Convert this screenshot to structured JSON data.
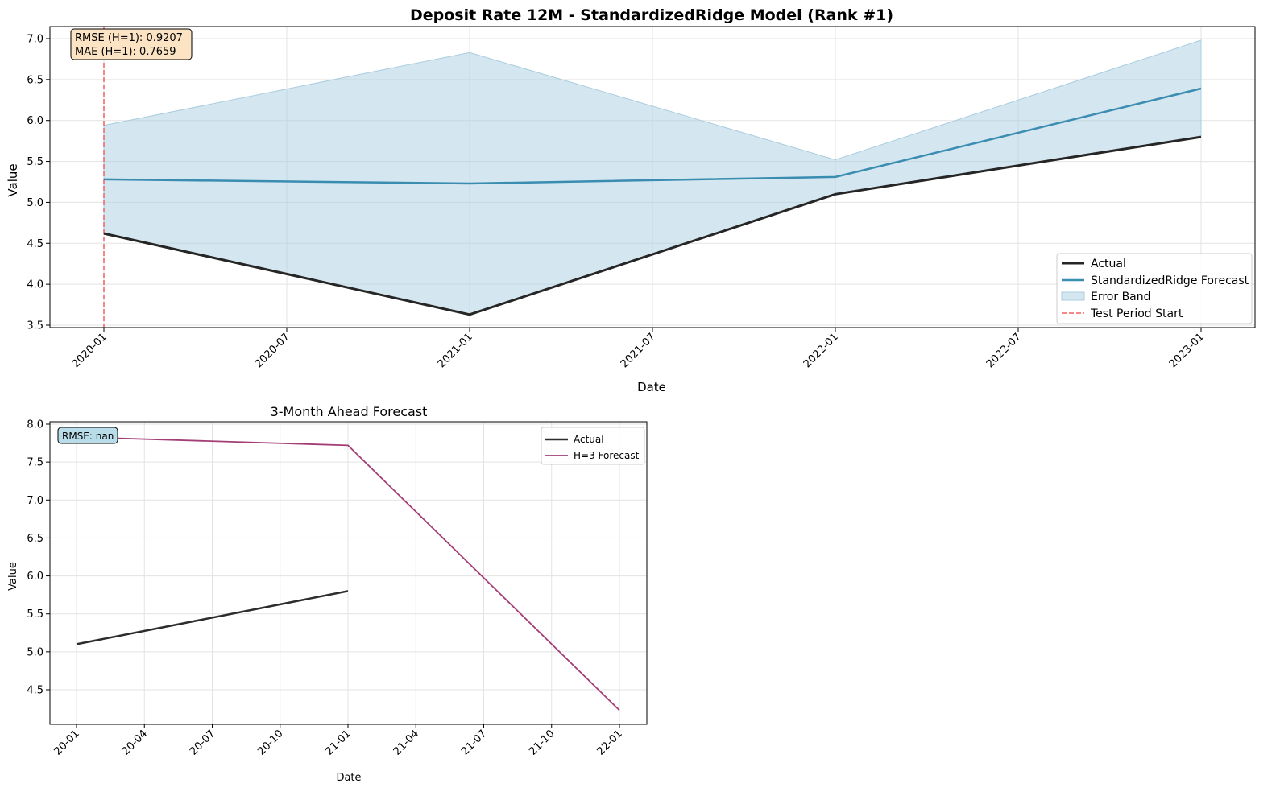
{
  "chart_data": [
    {
      "type": "line",
      "title": "Deposit Rate 12M - StandardizedRidge Model (Rank #1)",
      "xlabel": "Date",
      "ylabel": "Value",
      "x": [
        "2020-01",
        "2021-01",
        "2022-01",
        "2023-01"
      ],
      "xticks": [
        "2020-01",
        "2020-07",
        "2021-01",
        "2021-07",
        "2022-01",
        "2022-07",
        "2023-01"
      ],
      "yticks": [
        "3.5",
        "4.0",
        "4.5",
        "5.0",
        "5.5",
        "6.0",
        "6.5",
        "7.0"
      ],
      "ylim": [
        3.45,
        7.15
      ],
      "grid": true,
      "legend_position": "lower-right",
      "series": [
        {
          "name": "Actual",
          "values": [
            4.62,
            3.63,
            5.1,
            5.8
          ],
          "color": "#262626"
        },
        {
          "name": "StandardizedRidge Forecast",
          "values": [
            5.28,
            5.23,
            5.31,
            6.39
          ],
          "color": "#3a8cb0"
        }
      ],
      "error_band": {
        "name": "Error Band",
        "upper": [
          5.94,
          6.83,
          5.52,
          6.98
        ],
        "lower": [
          4.62,
          3.63,
          5.1,
          5.8
        ],
        "color": "#aacde0"
      },
      "vline": {
        "name": "Test Period Start",
        "x": "2020-01",
        "color": "#f06060"
      },
      "annotations": [
        "RMSE (H=1): 0.9207",
        "MAE (H=1): 0.7659"
      ]
    },
    {
      "type": "line",
      "title": "3-Month Ahead Forecast",
      "xlabel": "Date",
      "ylabel": "Value",
      "xticks": [
        "20-01",
        "20-04",
        "20-07",
        "20-10",
        "21-01",
        "21-04",
        "21-07",
        "21-10",
        "22-01"
      ],
      "yticks": [
        "4.5",
        "5.0",
        "5.5",
        "6.0",
        "6.5",
        "7.0",
        "7.5",
        "8.0"
      ],
      "ylim": [
        4.05,
        8.05
      ],
      "grid": true,
      "legend_position": "upper-right",
      "series": [
        {
          "name": "Actual",
          "x": [
            "2020-01",
            "2021-01"
          ],
          "values": [
            5.1,
            5.8
          ],
          "color": "#2d2d2d"
        },
        {
          "name": "H=3 Forecast",
          "x": [
            "2020-01",
            "2021-01",
            "2022-01"
          ],
          "values": [
            7.83,
            7.72,
            4.23
          ],
          "color": "#a33d76"
        }
      ],
      "annotations": [
        "RMSE: nan"
      ]
    }
  ]
}
